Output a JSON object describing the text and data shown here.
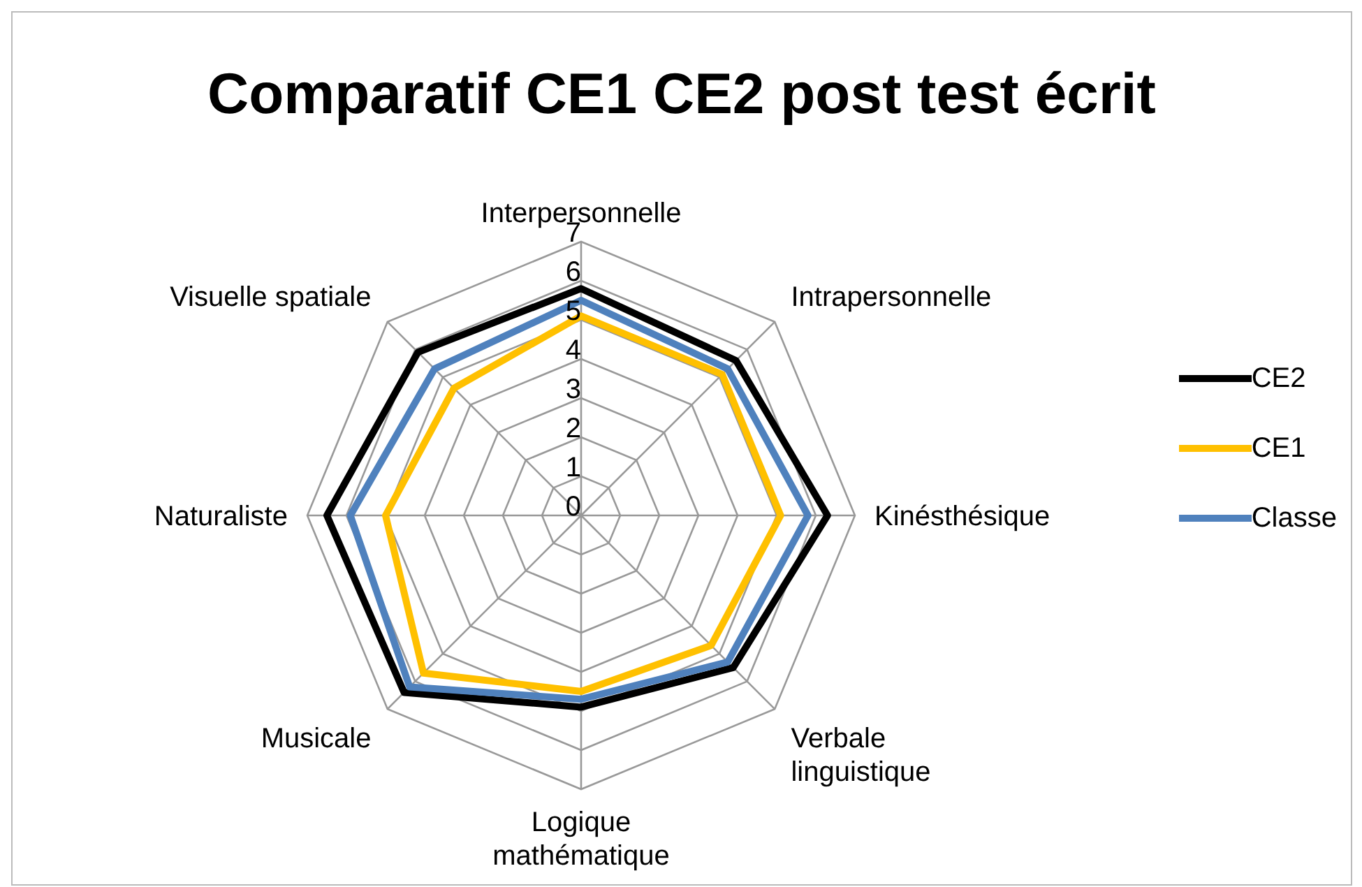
{
  "chart_data": {
    "type": "radar",
    "title": "Comparatif CE1 CE2 post test écrit",
    "categories": [
      "Interpersonnelle",
      "Intrapersonnelle",
      "Kinésthésique",
      "Verbale\nlinguistique",
      "Logique\nmathématique",
      "Musicale",
      "Naturaliste",
      "Visuelle spatiale"
    ],
    "series": [
      {
        "name": "CE2",
        "color": "#000000",
        "values": [
          5.8,
          5.6,
          6.3,
          5.5,
          4.9,
          6.4,
          6.5,
          5.9
        ]
      },
      {
        "name": "CE1",
        "color": "#ffc000",
        "values": [
          5.1,
          5.1,
          5.1,
          4.7,
          4.5,
          5.7,
          5.0,
          4.6
        ]
      },
      {
        "name": "Classe",
        "color": "#4f81bd",
        "values": [
          5.5,
          5.3,
          5.8,
          5.3,
          4.7,
          6.2,
          5.9,
          5.3
        ]
      }
    ],
    "ylim": [
      0,
      7
    ],
    "yticks": [
      0,
      1,
      2,
      3,
      4,
      5,
      6,
      7
    ],
    "grid": true,
    "legend": "right",
    "marker": "none"
  }
}
